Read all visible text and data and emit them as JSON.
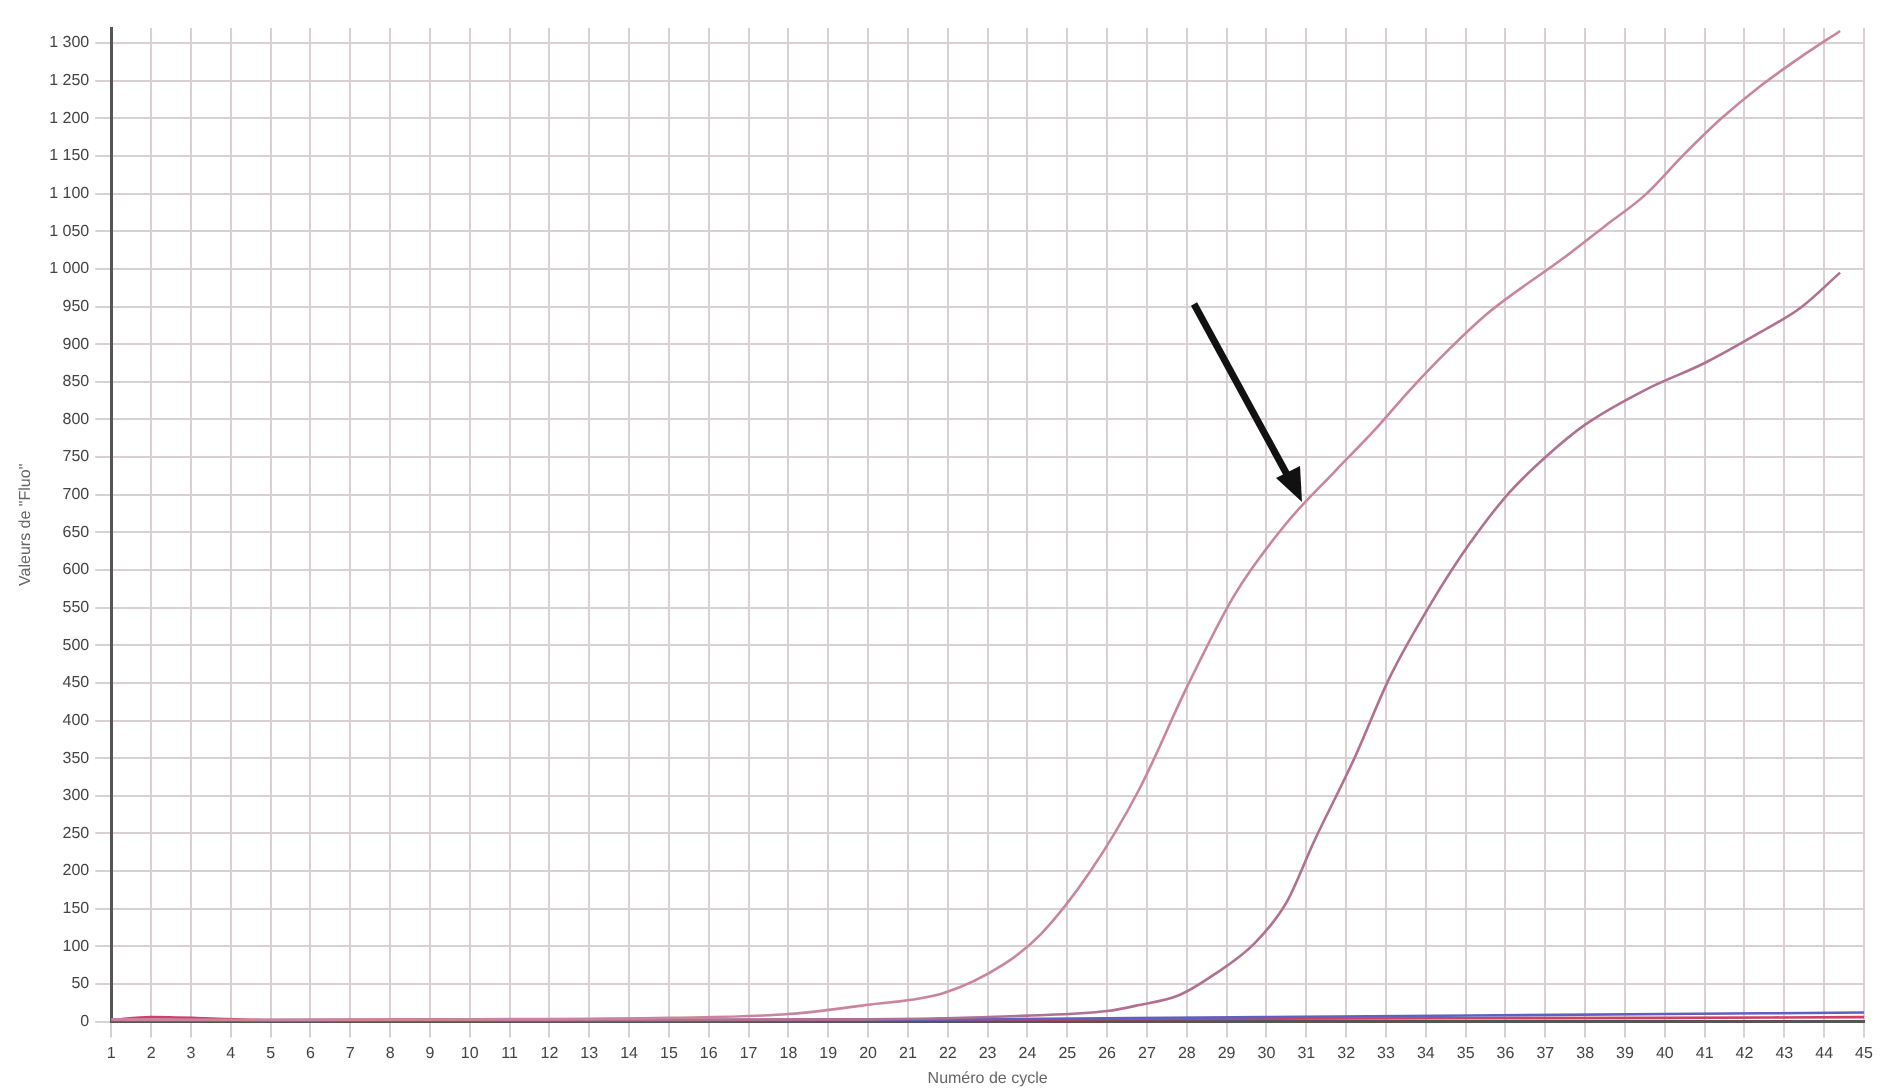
{
  "chart_data": {
    "type": "line",
    "xlabel": "Numéro de cycle",
    "ylabel": "Valeurs de \"Fluo\"",
    "xlim": [
      1,
      45
    ],
    "xticks": [
      1,
      2,
      3,
      4,
      5,
      6,
      7,
      8,
      9,
      10,
      11,
      12,
      13,
      14,
      15,
      16,
      17,
      18,
      19,
      20,
      21,
      22,
      23,
      24,
      25,
      26,
      27,
      28,
      29,
      30,
      31,
      32,
      33,
      34,
      35,
      36,
      37,
      38,
      39,
      40,
      41,
      42,
      43,
      44,
      45
    ],
    "ylim": [
      0,
      1320
    ],
    "yticks": [
      {
        "value": 0,
        "label": "0"
      },
      {
        "value": 50,
        "label": "50"
      },
      {
        "value": 100,
        "label": "100"
      },
      {
        "value": 150,
        "label": "150"
      },
      {
        "value": 200,
        "label": "200"
      },
      {
        "value": 250,
        "label": "250"
      },
      {
        "value": 300,
        "label": "300"
      },
      {
        "value": 350,
        "label": "350"
      },
      {
        "value": 400,
        "label": "400"
      },
      {
        "value": 450,
        "label": "450"
      },
      {
        "value": 500,
        "label": "500"
      },
      {
        "value": 550,
        "label": "550"
      },
      {
        "value": 600,
        "label": "600"
      },
      {
        "value": 650,
        "label": "650"
      },
      {
        "value": 700,
        "label": "700"
      },
      {
        "value": 750,
        "label": "750"
      },
      {
        "value": 800,
        "label": "800"
      },
      {
        "value": 850,
        "label": "850"
      },
      {
        "value": 900,
        "label": "900"
      },
      {
        "value": 950,
        "label": "950"
      },
      {
        "value": 1000,
        "label": "1 000"
      },
      {
        "value": 1050,
        "label": "1 050"
      },
      {
        "value": 1100,
        "label": "1 100"
      },
      {
        "value": 1150,
        "label": "1 150"
      },
      {
        "value": 1200,
        "label": "1 200"
      },
      {
        "value": 1250,
        "label": "1 250"
      },
      {
        "value": 1300,
        "label": "1 300"
      }
    ],
    "grid": true,
    "legend": false,
    "marker": "none",
    "line_style": "solid",
    "series": [
      {
        "color": "#c9869a",
        "x": [
          1,
          5,
          10,
          15,
          18,
          19.95,
          21.9,
          23.4,
          24.35,
          25.57,
          26.8,
          28.0,
          29.2,
          30.5,
          31.7,
          32.7,
          33.6,
          34.6,
          35.6,
          37.5,
          38.5,
          39.5,
          40.5,
          41.4,
          42.4,
          43.4,
          44.4
        ],
        "values": [
          3,
          2,
          3,
          5,
          10,
          22,
          38,
          76,
          117,
          199,
          308,
          444,
          567,
          662,
          730,
          785,
          839,
          894,
          943,
          1016,
          1057,
          1098,
          1153,
          1199,
          1243,
          1281,
          1316
        ]
      },
      {
        "color": "#b07090",
        "x": [
          1,
          10,
          20,
          24,
          26,
          26.8,
          27.8,
          28.7,
          29.7,
          30.5,
          31.2,
          32.2,
          33.1,
          34.1,
          35.1,
          36.1,
          37.05,
          38.0,
          39.5,
          41.0,
          42.4,
          43.4,
          44.4
        ],
        "values": [
          2,
          2,
          3,
          8,
          14,
          22,
          35,
          63,
          104,
          158,
          240,
          349,
          458,
          553,
          635,
          703,
          752,
          793,
          839,
          875,
          916,
          948,
          995
        ]
      },
      {
        "color": "#6060c0",
        "x": [
          1,
          10,
          20,
          30,
          40,
          45
        ],
        "values": [
          0,
          1,
          2,
          6,
          10,
          12
        ]
      },
      {
        "color": "#d04060",
        "x": [
          1,
          2,
          5,
          10,
          15,
          20,
          25,
          30,
          40,
          45
        ],
        "values": [
          2,
          6,
          2,
          3,
          2,
          3,
          3,
          4,
          5,
          6
        ]
      }
    ]
  }
}
